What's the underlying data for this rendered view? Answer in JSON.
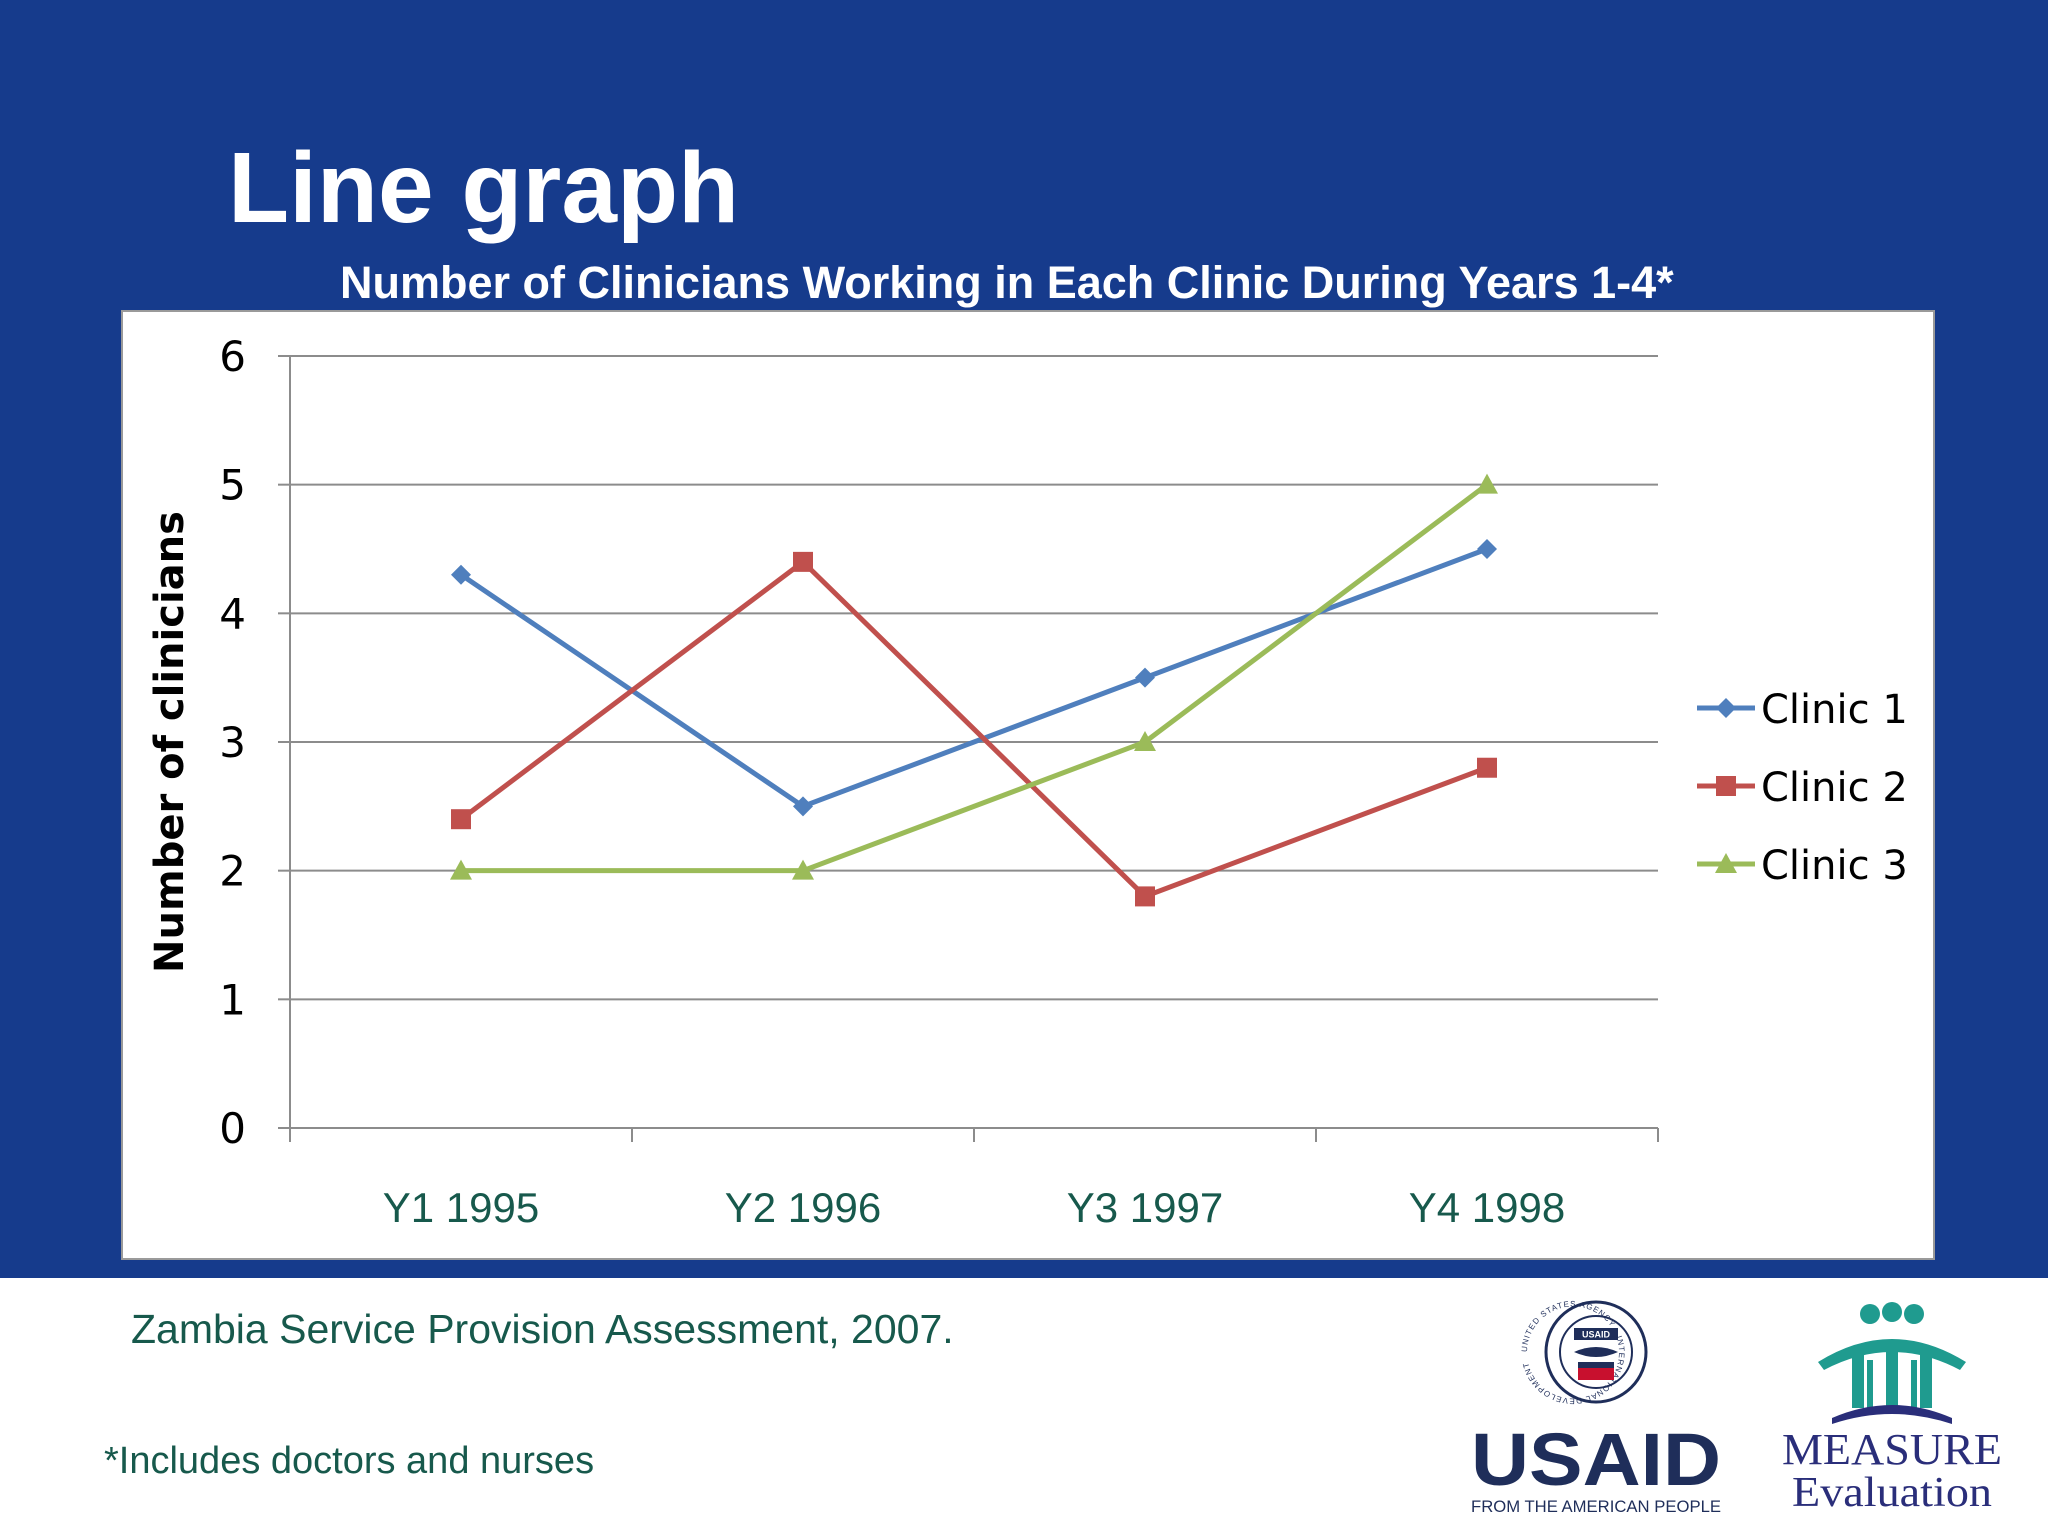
{
  "slide": {
    "title": "Line graph",
    "source": "Zambia Service Provision Assessment, 2007.",
    "footnote": "*Includes doctors and nurses"
  },
  "logos": {
    "usaid": {
      "wordmark": "USAID",
      "tagline": "FROM THE AMERICAN PEOPLE",
      "seal_text": "UNITED STATES AGENCY · INTERNATIONAL DEVELOPMENT",
      "seal_label": "USAID"
    },
    "measure": {
      "line1": "MEASURE",
      "line2": "Evaluation"
    }
  },
  "colors": {
    "background": "#163b8c",
    "text_green": "#17594c",
    "clinic1": "#4f7fbd",
    "clinic2": "#c0504d",
    "clinic3": "#9bbb59"
  },
  "chart_data": {
    "type": "line",
    "title": "Number of Clinicians Working in Each Clinic During Years 1-4*",
    "xlabel": "",
    "ylabel": "Number of clinicians",
    "categories": [
      "Y1 1995",
      "Y2 1996",
      "Y3 1997",
      "Y4 1998"
    ],
    "ylim": [
      0,
      6
    ],
    "yticks": [
      0,
      1,
      2,
      3,
      4,
      5,
      6
    ],
    "grid": true,
    "legend_position": "right",
    "series": [
      {
        "name": "Clinic 1",
        "values": [
          4.3,
          2.5,
          3.5,
          4.5
        ],
        "color": "#4f7fbd",
        "marker": "diamond"
      },
      {
        "name": "Clinic 2",
        "values": [
          2.4,
          4.4,
          1.8,
          2.8
        ],
        "color": "#c0504d",
        "marker": "square"
      },
      {
        "name": "Clinic 3",
        "values": [
          2.0,
          2.0,
          3.0,
          5.0
        ],
        "color": "#9bbb59",
        "marker": "triangle"
      }
    ]
  }
}
